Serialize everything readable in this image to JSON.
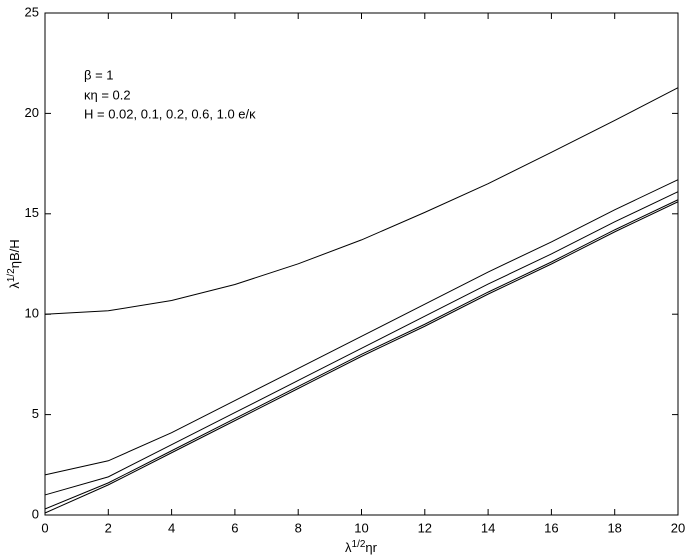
{
  "chart_data": {
    "type": "line",
    "annotations": [
      "β = 1",
      "κη = 0.2",
      "H = 0.02, 0.1, 0.2, 0.6, 1.0 e/κ"
    ],
    "xlabel": {
      "base": "λ",
      "sup": "1/2",
      "rest": "ηr"
    },
    "ylabel": {
      "base": "λ",
      "sup": "1/2",
      "rest": "ηB/H"
    },
    "x": [
      0,
      2,
      4,
      6,
      8,
      10,
      12,
      14,
      16,
      18,
      20
    ],
    "series": [
      {
        "color": "#000000",
        "values": [
          10.0,
          10.17,
          10.68,
          11.48,
          12.51,
          13.7,
          15.07,
          16.5,
          18.06,
          19.65,
          21.28
        ]
      },
      {
        "color": "#000000",
        "values": [
          2.0,
          2.7,
          4.1,
          5.7,
          7.3,
          8.9,
          10.5,
          12.1,
          13.6,
          15.2,
          16.7
        ]
      },
      {
        "color": "#000000",
        "values": [
          1.0,
          1.9,
          3.5,
          5.1,
          6.7,
          8.3,
          9.9,
          11.5,
          13.0,
          14.6,
          16.1
        ]
      },
      {
        "color": "#000000",
        "values": [
          0.3,
          1.6,
          3.2,
          4.8,
          6.4,
          8.0,
          9.5,
          11.1,
          12.6,
          14.2,
          15.7
        ]
      },
      {
        "color": "#000000",
        "values": [
          0.1,
          1.5,
          3.1,
          4.7,
          6.3,
          7.9,
          9.4,
          11.0,
          12.5,
          14.1,
          15.6
        ]
      }
    ],
    "xlim": [
      0,
      20
    ],
    "ylim": [
      0,
      25
    ],
    "xticks": [
      0,
      2,
      4,
      6,
      8,
      10,
      12,
      14,
      16,
      18,
      20
    ],
    "yticks": [
      0,
      5,
      10,
      15,
      20,
      25
    ],
    "grid": false
  }
}
